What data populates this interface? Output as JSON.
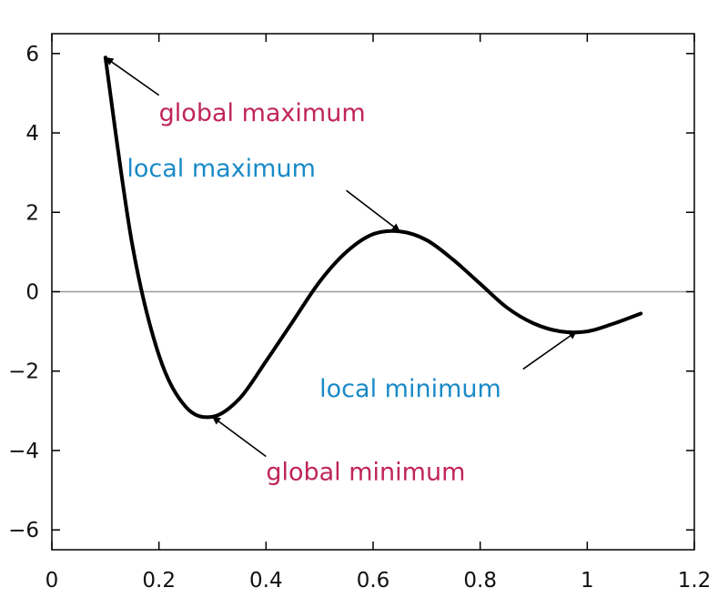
{
  "chart_data": {
    "type": "line",
    "title": "",
    "xlabel": "",
    "ylabel": "",
    "xlim": [
      0,
      1.2
    ],
    "ylim": [
      -6.5,
      6.5
    ],
    "grid": false,
    "x_ticks": [
      0,
      0.2,
      0.4,
      0.6,
      0.8,
      1.0,
      1.2
    ],
    "x_tick_labels": [
      "0",
      "0.2",
      "0.4",
      "0.6",
      "0.8",
      "1",
      "1.2"
    ],
    "y_ticks": [
      -6,
      -4,
      -2,
      0,
      2,
      4,
      6
    ],
    "y_tick_labels": [
      "−6",
      "−4",
      "−2",
      "0",
      "2",
      "4",
      "6"
    ],
    "zero_line": true,
    "series": [
      {
        "color": "#000000",
        "x": [
          0.1,
          0.15,
          0.2,
          0.25,
          0.3,
          0.35,
          0.4,
          0.45,
          0.5,
          0.55,
          0.6,
          0.65,
          0.7,
          0.75,
          0.8,
          0.85,
          0.9,
          0.95,
          1.0,
          1.05,
          1.1
        ],
        "y": [
          5.9,
          1.2,
          -1.6,
          -2.9,
          -3.15,
          -2.7,
          -1.75,
          -0.75,
          0.25,
          1.0,
          1.45,
          1.52,
          1.3,
          0.8,
          0.2,
          -0.4,
          -0.8,
          -1.0,
          -1.0,
          -0.8,
          -0.55
        ]
      }
    ],
    "annotations": [
      {
        "text": "global maximum",
        "color": "#c0245b",
        "point": [
          0.1,
          5.9
        ],
        "text_at": [
          0.2,
          4.3
        ],
        "arrow_from": [
          0.2,
          4.95
        ]
      },
      {
        "text": "local maximum",
        "color": "#1a8ac8",
        "point": [
          0.65,
          1.52
        ],
        "text_at": [
          0.14,
          2.9
        ],
        "arrow_from": [
          0.55,
          2.55
        ]
      },
      {
        "text": "local minimum",
        "color": "#1a8ac8",
        "point": [
          0.98,
          -1.0
        ],
        "text_at": [
          0.5,
          -2.65
        ],
        "arrow_from": [
          0.88,
          -1.95
        ]
      },
      {
        "text": "global minimum",
        "color": "#c0245b",
        "point": [
          0.3,
          -3.15
        ],
        "text_at": [
          0.4,
          -4.75
        ],
        "arrow_from": [
          0.4,
          -4.15
        ]
      }
    ]
  }
}
